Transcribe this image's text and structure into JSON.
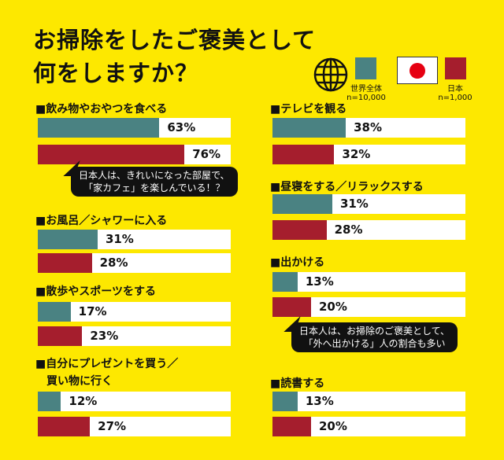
{
  "title_lines": [
    "お掃除をしたご褒美として",
    "何をしますか？"
  ],
  "legend": [
    {
      "icon": "globe-icon",
      "name": "世界全体",
      "n": "n=10,000",
      "color": "#4a8282"
    },
    {
      "icon": "japan-flag-icon",
      "name": "日本",
      "n": "n=1,000",
      "color": "#a51e2d"
    }
  ],
  "chart_data": {
    "type": "bar",
    "orientation": "horizontal",
    "xlim": [
      0,
      100
    ],
    "series": [
      {
        "name": "世界全体",
        "color": "#4a8282"
      },
      {
        "name": "日本",
        "color": "#a51e2d"
      }
    ],
    "groups": [
      {
        "category": "■飲み物やおやつを食べる",
        "values": [
          63,
          76
        ],
        "labels": [
          "63%",
          "76%"
        ],
        "callout": [
          "日本人は、きれいになった部屋で、",
          "「家カフェ」を楽しんでいる！？"
        ]
      },
      {
        "category": "■お風呂／シャワーに入る",
        "values": [
          31,
          28
        ],
        "labels": [
          "31%",
          "28%"
        ]
      },
      {
        "category": "■散歩やスポーツをする",
        "values": [
          17,
          23
        ],
        "labels": [
          "17%",
          "23%"
        ]
      },
      {
        "category": "■自分にプレゼントを買う／\n　買い物に行く",
        "values": [
          12,
          27
        ],
        "labels": [
          "12%",
          "27%"
        ]
      },
      {
        "category": "■テレビを観る",
        "values": [
          38,
          32
        ],
        "labels": [
          "38%",
          "32%"
        ]
      },
      {
        "category": "■昼寝をする／リラックスする",
        "values": [
          31,
          28
        ],
        "labels": [
          "31%",
          "28%"
        ]
      },
      {
        "category": "■出かける",
        "values": [
          13,
          20
        ],
        "labels": [
          "13%",
          "20%"
        ],
        "callout": [
          "日本人は、お掃除のご褒美として、",
          "「外へ出かける」人の割合も多い"
        ]
      },
      {
        "category": "■読書する",
        "values": [
          13,
          20
        ],
        "labels": [
          "13%",
          "20%"
        ]
      }
    ]
  }
}
